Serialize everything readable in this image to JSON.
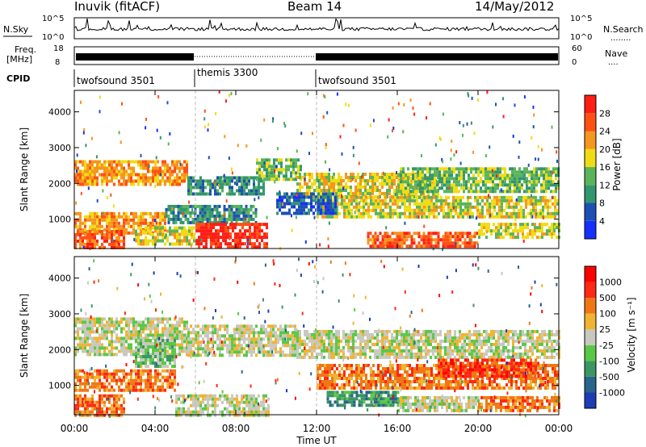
{
  "header": {
    "station": "Inuvik (fitACF)",
    "beam": "Beam 14",
    "date": "14/May/2012"
  },
  "nsky_panel": {
    "left_label": "N.Sky",
    "right_label": "N.Search",
    "right_dots": "........",
    "left_ticks": [
      "10^5",
      "10^0"
    ],
    "right_ticks": [
      "10^5",
      "10^0"
    ]
  },
  "freq_panel": {
    "left_label_1": "Freq.",
    "left_label_2": "[MHz]",
    "left_ticks": [
      "18",
      "8"
    ],
    "right_label": "Nave",
    "right_dots": "....",
    "right_ticks": [
      "60",
      "0"
    ]
  },
  "cpid_panel": {
    "label": "CPID",
    "segments": [
      {
        "name": "twofsound 3501",
        "start_hour": 0,
        "end_hour": 6
      },
      {
        "name": "themis 3300",
        "start_hour": 6,
        "end_hour": 12
      },
      {
        "name": "twofsound 3501",
        "start_hour": 12,
        "end_hour": 24
      }
    ]
  },
  "x_axis": {
    "label": "Time UT",
    "ticks": [
      "00:00",
      "04:00",
      "08:00",
      "12:00",
      "16:00",
      "20:00",
      "00:00"
    ],
    "range_hours": [
      0,
      24
    ]
  },
  "chart_data": [
    {
      "type": "heatmap",
      "name": "power",
      "ylabel": "Slant Range [km]",
      "yticks": [
        "1000",
        "2000",
        "3000",
        "4000"
      ],
      "ylim": [
        180,
        4600
      ],
      "xlim_hours": [
        0,
        24
      ],
      "colorbar": {
        "label": "Power [dB]",
        "ticks": [
          "4",
          "8",
          "12",
          "16",
          "20",
          "24",
          "28"
        ],
        "colors": [
          "#1430ff",
          "#1e50b4",
          "#32966e",
          "#5ab45a",
          "#f0dc14",
          "#f5961e",
          "#ff5014",
          "#ff1e14"
        ]
      },
      "regions": [
        {
          "t0": 0.0,
          "t1": 5.6,
          "r0": 1950,
          "r1": 2650,
          "level": 5
        },
        {
          "t0": 5.6,
          "t1": 9.4,
          "r0": 1700,
          "r1": 2200,
          "level": 2
        },
        {
          "t0": 9.0,
          "t1": 11.2,
          "r0": 2100,
          "r1": 2700,
          "level": 3
        },
        {
          "t0": 11.0,
          "t1": 18.0,
          "r0": 1600,
          "r1": 2300,
          "level": 4
        },
        {
          "t0": 16.0,
          "t1": 24.0,
          "r0": 1800,
          "r1": 2450,
          "level": 3
        },
        {
          "t0": 12.0,
          "t1": 24.0,
          "r0": 1050,
          "r1": 1650,
          "level": 4
        },
        {
          "t0": 0.0,
          "t1": 4.5,
          "r0": 650,
          "r1": 1200,
          "level": 5
        },
        {
          "t0": 4.5,
          "t1": 9.0,
          "r0": 900,
          "r1": 1400,
          "level": 2
        },
        {
          "t0": 0.0,
          "t1": 2.5,
          "r0": 200,
          "r1": 700,
          "level": 6
        },
        {
          "t0": 3.0,
          "t1": 6.0,
          "r0": 300,
          "r1": 800,
          "level": 4
        },
        {
          "t0": 6.0,
          "t1": 9.6,
          "r0": 200,
          "r1": 900,
          "level": 7
        },
        {
          "t0": 14.5,
          "t1": 20.0,
          "r0": 220,
          "r1": 650,
          "level": 6
        },
        {
          "t0": 20.0,
          "t1": 24.0,
          "r0": 450,
          "r1": 900,
          "level": 4
        },
        {
          "t0": 10.0,
          "t1": 13.0,
          "r0": 1200,
          "r1": 1750,
          "level": 1
        }
      ]
    },
    {
      "type": "heatmap",
      "name": "velocity",
      "ylabel": "Slant Range [km]",
      "yticks": [
        "1000",
        "2000",
        "3000",
        "4000"
      ],
      "ylim": [
        180,
        4600
      ],
      "xlim_hours": [
        0,
        24
      ],
      "colorbar": {
        "label": "Velocity [m s⁻¹]",
        "ticks": [
          "1000",
          "500",
          "100",
          "25",
          "-25",
          "-100",
          "-500",
          "-1000"
        ],
        "colors": [
          "#1e3cb4",
          "#28648c",
          "#3c9664",
          "#5ac846",
          "#c8c8c0",
          "#f0b432",
          "#f07814",
          "#ff2814",
          "#ff0000"
        ]
      },
      "regions": [
        {
          "t0": 0.0,
          "t1": 5.6,
          "r0": 1850,
          "r1": 2900,
          "level": 4
        },
        {
          "t0": 5.6,
          "t1": 11.0,
          "r0": 1800,
          "r1": 2700,
          "level": 4
        },
        {
          "t0": 11.0,
          "t1": 24.0,
          "r0": 1800,
          "r1": 2550,
          "level": 4
        },
        {
          "t0": 0.0,
          "t1": 5.0,
          "r0": 850,
          "r1": 1450,
          "level": 6
        },
        {
          "t0": 12.0,
          "t1": 24.0,
          "r0": 900,
          "r1": 1600,
          "level": 6
        },
        {
          "t0": 18.0,
          "t1": 23.0,
          "r0": 1250,
          "r1": 1750,
          "level": 7
        },
        {
          "t0": 0.0,
          "t1": 2.5,
          "r0": 200,
          "r1": 750,
          "level": 6
        },
        {
          "t0": 5.0,
          "t1": 9.6,
          "r0": 200,
          "r1": 750,
          "level": 4
        },
        {
          "t0": 12.5,
          "t1": 16.0,
          "r0": 400,
          "r1": 850,
          "level": 2
        },
        {
          "t0": 16.0,
          "t1": 20.0,
          "r0": 300,
          "r1": 700,
          "level": 4
        },
        {
          "t0": 20.0,
          "t1": 24.0,
          "r0": 300,
          "r1": 700,
          "level": 6
        },
        {
          "t0": 3.0,
          "t1": 5.0,
          "r0": 1500,
          "r1": 2300,
          "level": 3
        }
      ]
    }
  ]
}
